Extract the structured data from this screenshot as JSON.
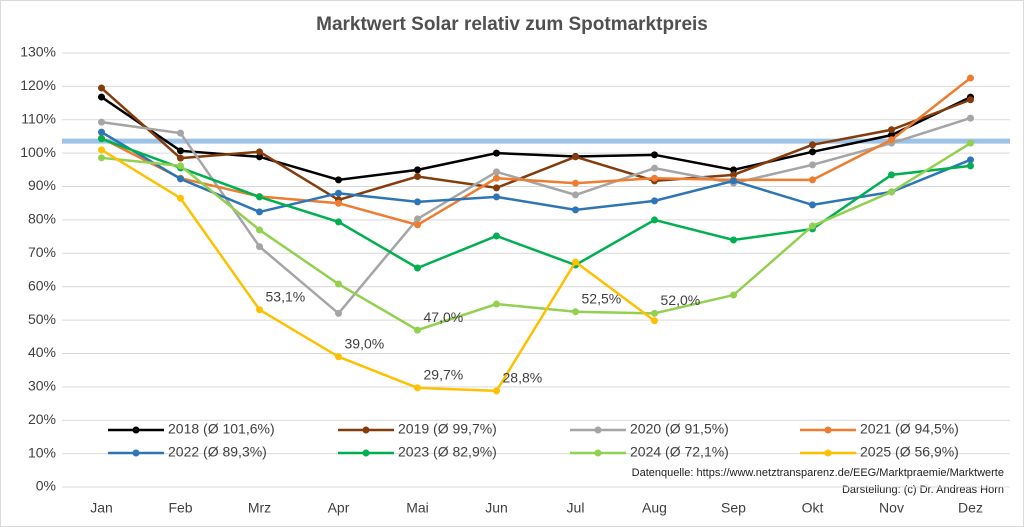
{
  "chart_data": {
    "type": "line",
    "title": "Marktwert Solar relativ zum Spotmarktpreis",
    "categories": [
      "Jan",
      "Feb",
      "Mrz",
      "Apr",
      "Mai",
      "Jun",
      "Jul",
      "Aug",
      "Sep",
      "Okt",
      "Nov",
      "Dez"
    ],
    "ylim": [
      0,
      130
    ],
    "yticks": [
      {
        "value": 0,
        "label": "0%"
      },
      {
        "value": 10,
        "label": "10%"
      },
      {
        "value": 20,
        "label": "20%"
      },
      {
        "value": 30,
        "label": "30%"
      },
      {
        "value": 40,
        "label": "40%"
      },
      {
        "value": 50,
        "label": "50%"
      },
      {
        "value": 60,
        "label": "60%"
      },
      {
        "value": 70,
        "label": "70%"
      },
      {
        "value": 80,
        "label": "80%"
      },
      {
        "value": 90,
        "label": "90%"
      },
      {
        "value": 100,
        "label": "100%"
      },
      {
        "value": 110,
        "label": "110%"
      },
      {
        "value": 120,
        "label": "120%"
      },
      {
        "value": 130,
        "label": "130%"
      }
    ],
    "grid": true,
    "reference_line": {
      "value": 103.6,
      "color": "#9dc3e6"
    },
    "series": [
      {
        "name": "2018 (Ø 101,6%)",
        "color": "#000000",
        "values": [
          116.8,
          100.7,
          98.9,
          92,
          95,
          100,
          99,
          99.5,
          95,
          100.4,
          105.4,
          116.8
        ]
      },
      {
        "name": "2019 (Ø 99,7%)",
        "color": "#843c0c",
        "values": [
          119.5,
          98.5,
          100.4,
          86,
          93,
          89.6,
          98.9,
          91.7,
          93.5,
          102.5,
          107,
          116
        ]
      },
      {
        "name": "2020 (Ø 91,5%)",
        "color": "#a5a5a5",
        "values": [
          109.3,
          106,
          72,
          52,
          80.3,
          94.4,
          87.5,
          95.5,
          91,
          96.5,
          103,
          110.5
        ]
      },
      {
        "name": "2021 (Ø 94,5%)",
        "color": "#ed7d31",
        "values": [
          104.5,
          92.5,
          87,
          85,
          78.5,
          92.5,
          91,
          92.5,
          92,
          92,
          104,
          122.5
        ]
      },
      {
        "name": "2022 (Ø 89,3%)",
        "color": "#2e75b6",
        "values": [
          106.3,
          92.3,
          82.4,
          88,
          85.4,
          86.9,
          83,
          85.7,
          91.7,
          84.5,
          88.4,
          98
        ]
      },
      {
        "name": "2023 (Ø 82,9%)",
        "color": "#00b050",
        "values": [
          104.3,
          95.6,
          86.9,
          79.4,
          65.6,
          75.2,
          66.5,
          80,
          74,
          77.3,
          93.5,
          96.2
        ]
      },
      {
        "name": "2024 (Ø 72,1%)",
        "color": "#92d050",
        "values": [
          98.6,
          96.2,
          77,
          60.8,
          47.0,
          54.8,
          52.5,
          52.0,
          57.5,
          78.2,
          88.4,
          103
        ],
        "value_labels": [
          null,
          null,
          null,
          null,
          "47,0%",
          null,
          "52,5%",
          "52,0%",
          null,
          null,
          null,
          null
        ]
      },
      {
        "name": "2025 (Ø 56,9%)",
        "color": "#ffc000",
        "values": [
          101,
          86.5,
          53.1,
          39.0,
          29.7,
          28.8,
          67.4,
          49.8,
          null,
          null,
          null,
          null
        ],
        "value_labels": [
          null,
          null,
          "53,1%",
          "39,0%",
          "29,7%",
          "28,8%",
          null,
          null,
          null,
          null,
          null,
          null
        ]
      }
    ],
    "source": "Datenquelle: https://www.netztransparenz.de/EEG/Marktpraemie/Marktwerte",
    "credit": "Darstellung: (c) Dr. Andreas Horn"
  }
}
